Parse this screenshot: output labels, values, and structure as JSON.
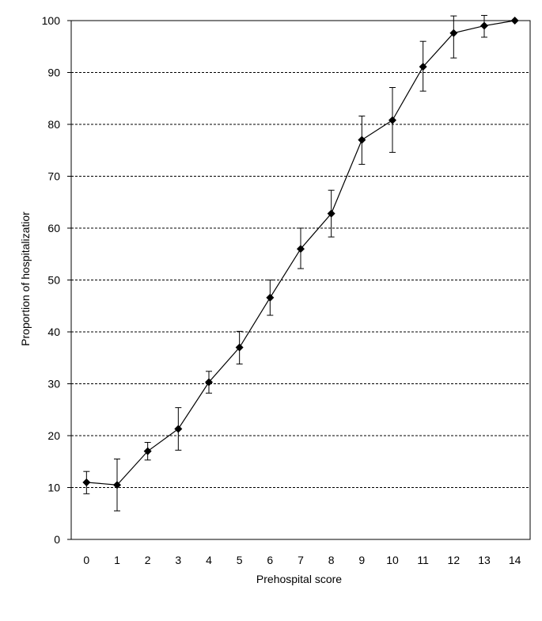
{
  "chart_data": {
    "type": "line",
    "title": "",
    "xlabel": "Prehospital score",
    "ylabel": "Proportion of hospitalizatior",
    "x": [
      0,
      1,
      2,
      3,
      4,
      5,
      6,
      7,
      8,
      9,
      10,
      11,
      12,
      13,
      14
    ],
    "xlim": [
      -0.5,
      14.5
    ],
    "ylim": [
      0,
      100
    ],
    "yticks": [
      0,
      10,
      20,
      30,
      40,
      50,
      60,
      70,
      80,
      90,
      100
    ],
    "grid": "horizontal-dashed",
    "legend": "none",
    "series": [
      {
        "values": [
          11.0,
          10.5,
          17.0,
          21.3,
          30.3,
          37.0,
          46.6,
          56.0,
          62.8,
          77.0,
          80.8,
          91.1,
          97.6,
          99.0,
          100.0
        ],
        "error_low": [
          8.8,
          5.5,
          15.3,
          17.2,
          28.2,
          33.8,
          43.2,
          52.2,
          58.3,
          72.3,
          74.6,
          86.4,
          92.8,
          96.8,
          100.0
        ],
        "error_high": [
          13.1,
          15.5,
          18.7,
          25.4,
          32.4,
          40.1,
          50.0,
          60.0,
          67.3,
          81.6,
          87.1,
          96.0,
          100.9,
          101.0,
          100.0
        ],
        "marker": "diamond",
        "color": "#000000"
      }
    ]
  }
}
